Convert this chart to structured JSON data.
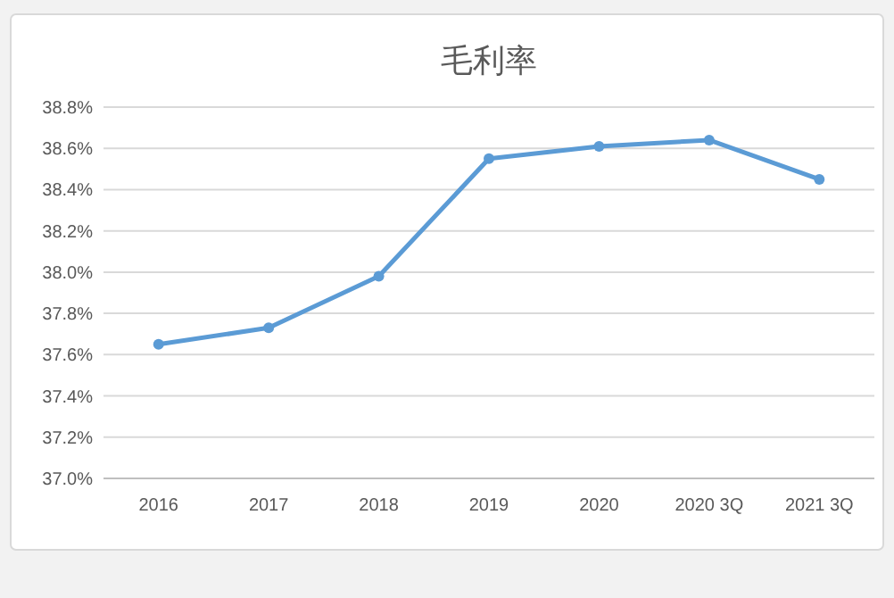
{
  "chart_data": {
    "type": "line",
    "title": "毛利率",
    "categories": [
      "2016",
      "2017",
      "2018",
      "2019",
      "2020",
      "2020 3Q",
      "2021 3Q"
    ],
    "series": [
      {
        "color": "#5b9bd5",
        "values": [
          37.65,
          37.73,
          37.98,
          38.55,
          38.61,
          38.64,
          38.45
        ]
      }
    ],
    "ylim": [
      37.0,
      38.8
    ],
    "yticks": [
      {
        "value": 37.0,
        "label": "37.0%"
      },
      {
        "value": 37.2,
        "label": "37.2%"
      },
      {
        "value": 37.4,
        "label": "37.4%"
      },
      {
        "value": 37.6,
        "label": "37.6%"
      },
      {
        "value": 37.8,
        "label": "37.8%"
      },
      {
        "value": 38.0,
        "label": "38.0%"
      },
      {
        "value": 38.2,
        "label": "38.2%"
      },
      {
        "value": 38.4,
        "label": "38.4%"
      },
      {
        "value": 38.6,
        "label": "38.6%"
      },
      {
        "value": 38.8,
        "label": "38.8%"
      }
    ],
    "grid": "y",
    "marker": "circle",
    "line_style": "solid"
  }
}
